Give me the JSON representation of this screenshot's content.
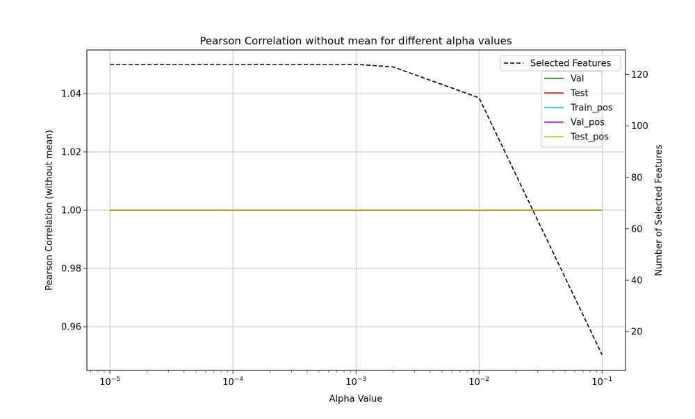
{
  "chart_data": {
    "type": "line",
    "title": "Pearson Correlation without mean for different alpha values",
    "xlabel": "Alpha Value",
    "ylabel": "Pearson Correlation (without mean)",
    "y2label": "Number of Selected Features",
    "xscale": "log",
    "xlim": [
      6.5e-06,
      0.155
    ],
    "ylim": [
      0.945,
      1.055
    ],
    "y2lim": [
      4.9,
      129.6
    ],
    "xticks": [
      {
        "value": 1e-05,
        "base": "10",
        "exp": "−5"
      },
      {
        "value": 0.0001,
        "base": "10",
        "exp": "−4"
      },
      {
        "value": 0.001,
        "base": "10",
        "exp": "−3"
      },
      {
        "value": 0.01,
        "base": "10",
        "exp": "−2"
      },
      {
        "value": 0.1,
        "base": "10",
        "exp": "−1"
      }
    ],
    "yticks": [
      {
        "value": 0.96,
        "label": "0.96"
      },
      {
        "value": 0.98,
        "label": "0.98"
      },
      {
        "value": 1.0,
        "label": "1.00"
      },
      {
        "value": 1.02,
        "label": "1.02"
      },
      {
        "value": 1.04,
        "label": "1.04"
      }
    ],
    "y2ticks": [
      {
        "value": 20,
        "label": "20"
      },
      {
        "value": 40,
        "label": "40"
      },
      {
        "value": 60,
        "label": "60"
      },
      {
        "value": 80,
        "label": "80"
      },
      {
        "value": 100,
        "label": "100"
      },
      {
        "value": 120,
        "label": "120"
      }
    ],
    "grid": true,
    "x": [
      1e-05,
      0.0001,
      0.001,
      0.002,
      0.01,
      0.1
    ],
    "series": [
      {
        "name": "Val",
        "axis": "left",
        "color": "#008000",
        "dash": "solid",
        "values": [
          1.0,
          1.0,
          1.0,
          1.0,
          1.0,
          1.0
        ]
      },
      {
        "name": "Test",
        "axis": "left",
        "color": "#ff0000",
        "dash": "solid",
        "values": [
          1.0,
          1.0,
          1.0,
          1.0,
          1.0,
          1.0
        ]
      },
      {
        "name": "Train_pos",
        "axis": "left",
        "color": "#00bfbf",
        "dash": "solid",
        "values": [
          1.0,
          1.0,
          1.0,
          1.0,
          1.0,
          1.0
        ]
      },
      {
        "name": "Val_pos",
        "axis": "left",
        "color": "#bf00bf",
        "dash": "solid",
        "values": [
          1.0,
          1.0,
          1.0,
          1.0,
          1.0,
          1.0
        ]
      },
      {
        "name": "Test_pos",
        "axis": "left",
        "color": "#bfbf00",
        "dash": "solid",
        "values": [
          1.0,
          1.0,
          1.0,
          1.0,
          1.0,
          1.0
        ]
      },
      {
        "name": "Selected Features",
        "axis": "right",
        "color": "#000000",
        "dash": "dashed",
        "values": [
          124,
          124,
          124,
          123,
          111,
          11
        ]
      }
    ],
    "legend": {
      "placement": "top-right",
      "entries": [
        {
          "name": "Selected Features",
          "color": "#000000",
          "dash": "dashed"
        },
        {
          "name": "Val",
          "color": "#008000",
          "dash": "solid"
        },
        {
          "name": "Test",
          "color": "#ff0000",
          "dash": "solid"
        },
        {
          "name": "Train_pos",
          "color": "#00bfbf",
          "dash": "solid"
        },
        {
          "name": "Val_pos",
          "color": "#bf00bf",
          "dash": "solid"
        },
        {
          "name": "Test_pos",
          "color": "#bfbf00",
          "dash": "solid"
        }
      ]
    }
  }
}
